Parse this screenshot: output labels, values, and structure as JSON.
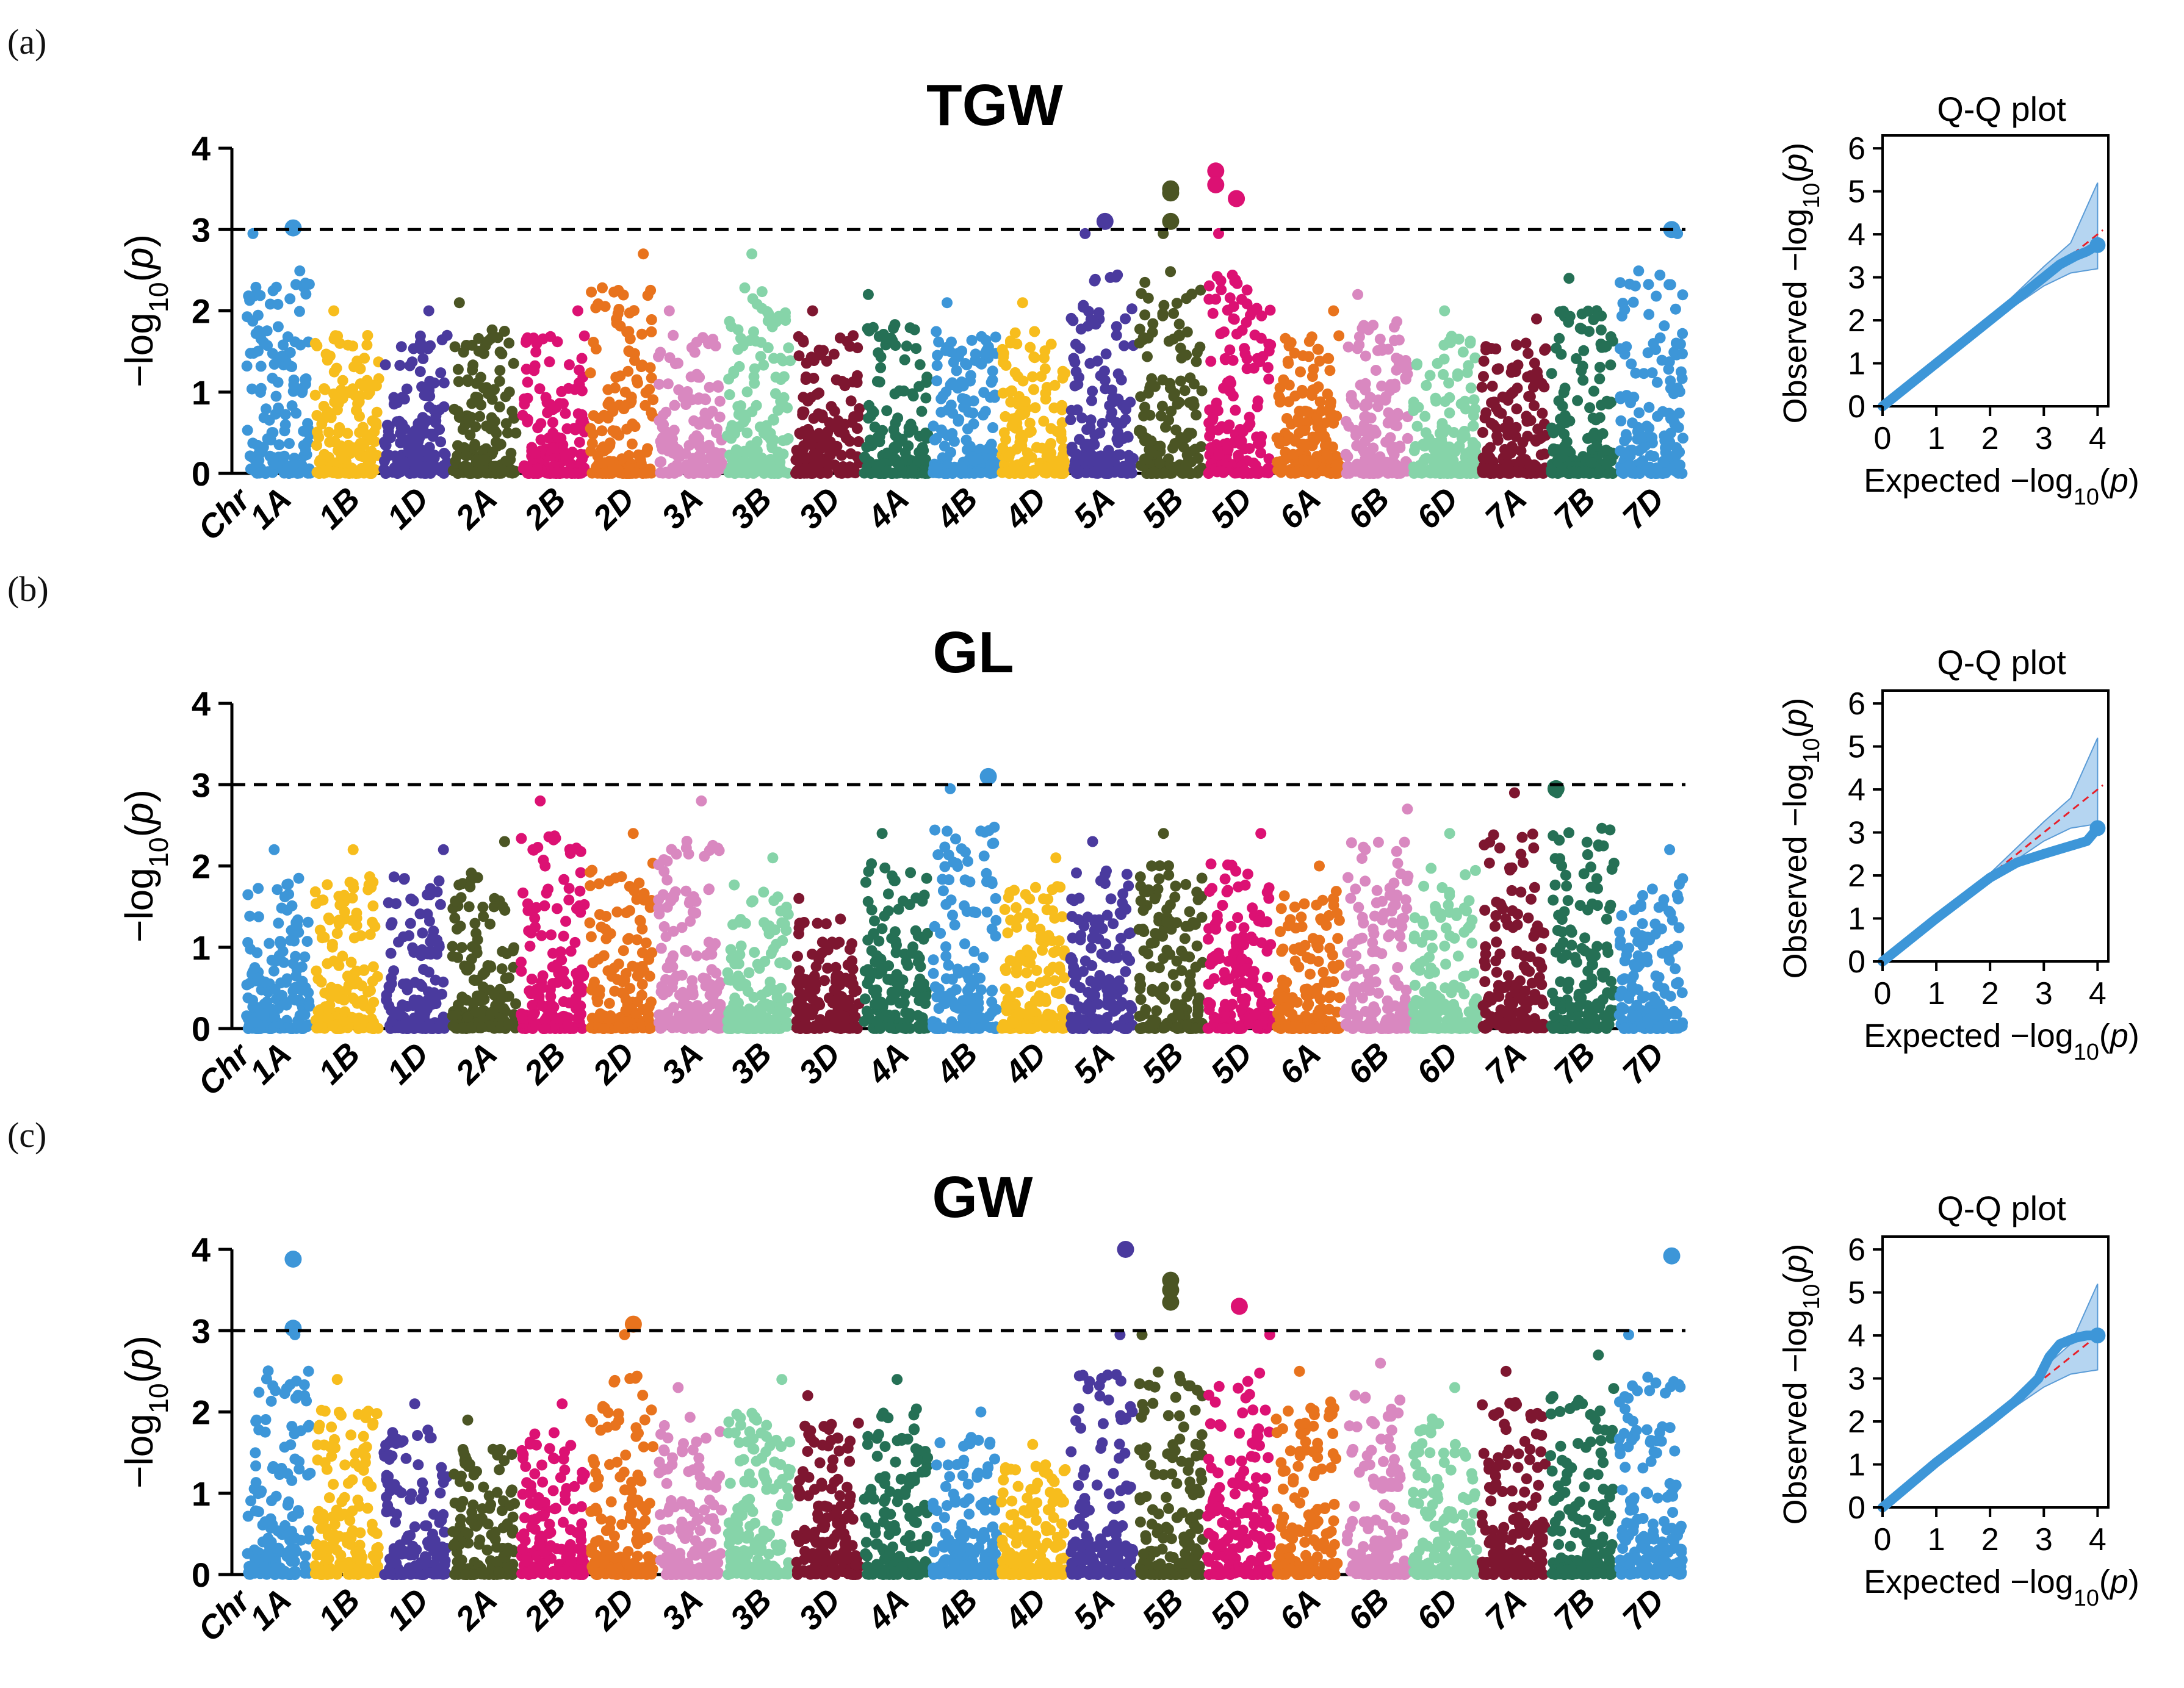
{
  "figure": {
    "panels": [
      {
        "letter": "(a)",
        "title": "TGW"
      },
      {
        "letter": "(b)",
        "title": "GL"
      },
      {
        "letter": "(c)",
        "title": "GW"
      }
    ],
    "manhattan_ylabel": "−log10(p)",
    "qq_title": "Q-Q plot",
    "qq_xlabel": "Expected −log10(p)",
    "qq_ylabel": "Observed −log10(p)",
    "chr_axis_label": "Chr"
  },
  "chart_data": [
    {
      "type": "scatter",
      "subtype": "manhattan",
      "panel": "(a)",
      "title": "TGW",
      "xlabel": "Chr",
      "ylabel": "−log10(p)",
      "ylim": [
        0,
        4
      ],
      "yticks": [
        0,
        1,
        2,
        3,
        4
      ],
      "threshold": 3,
      "categories": [
        "1A",
        "1B",
        "1D",
        "2A",
        "2B",
        "2D",
        "3A",
        "3B",
        "3D",
        "4A",
        "4B",
        "4D",
        "5A",
        "5B",
        "5D",
        "6A",
        "6B",
        "6D",
        "7A",
        "7B",
        "7D"
      ],
      "chrom_colors": [
        "#3d96d8",
        "#f7bd1d",
        "#4a3a9e",
        "#4b5524",
        "#dc1173",
        "#e8731d",
        "#d988c0",
        "#86d4a9",
        "#7e1630",
        "#257055",
        "#3d96d8",
        "#f7bd1d",
        "#4a3a9e",
        "#4b5524",
        "#dc1173",
        "#e8731d",
        "#d988c0",
        "#86d4a9",
        "#7e1630",
        "#257055",
        "#3d96d8"
      ],
      "max_value_by_chr": [
        3.0,
        2.0,
        2.0,
        2.1,
        2.0,
        2.7,
        2.0,
        2.7,
        2.0,
        2.2,
        2.1,
        2.1,
        3.1,
        3.5,
        3.7,
        2.0,
        2.2,
        2.0,
        1.9,
        2.4,
        3.0
      ],
      "significant_points": [
        {
          "chr": "1A",
          "position": 0.75,
          "value": 3.02
        },
        {
          "chr": "5A",
          "position": 0.55,
          "value": 3.1
        },
        {
          "chr": "5B",
          "position": 0.5,
          "value": 3.5
        },
        {
          "chr": "5B",
          "position": 0.5,
          "value": 3.45
        },
        {
          "chr": "5B",
          "position": 0.5,
          "value": 3.1
        },
        {
          "chr": "5D",
          "position": 0.1,
          "value": 3.72
        },
        {
          "chr": "5D",
          "position": 0.1,
          "value": 3.55
        },
        {
          "chr": "5D",
          "position": 0.45,
          "value": 3.38
        },
        {
          "chr": "7D",
          "position": 0.85,
          "value": 3.0
        }
      ]
    },
    {
      "type": "line",
      "subtype": "qq",
      "panel": "(a)",
      "title": "Q-Q plot",
      "xlabel": "Expected −log10(p)",
      "ylabel": "Observed −log10(p)",
      "xlim": [
        0,
        4.2
      ],
      "ylim": [
        0,
        6.3
      ],
      "xticks": [
        0,
        1,
        2,
        3,
        4
      ],
      "yticks": [
        0,
        1,
        2,
        3,
        4,
        5,
        6
      ],
      "observed_curve": {
        "x": [
          0,
          1,
          2,
          2.5,
          3,
          3.3,
          3.6,
          3.8,
          4.0
        ],
        "y": [
          0,
          1,
          2,
          2.5,
          3.0,
          3.3,
          3.5,
          3.6,
          3.75
        ]
      },
      "confidence_band": {
        "x": [
          0,
          1,
          2,
          3,
          3.5,
          4.0
        ],
        "lower": [
          0,
          1,
          1.95,
          2.8,
          3.1,
          3.2
        ],
        "upper": [
          0,
          1,
          2.05,
          3.25,
          3.8,
          5.2
        ]
      },
      "reference_line": {
        "x": [
          0,
          4.1
        ],
        "y": [
          0,
          4.1
        ]
      }
    },
    {
      "type": "scatter",
      "subtype": "manhattan",
      "panel": "(b)",
      "title": "GL",
      "xlabel": "Chr",
      "ylabel": "−log10(p)",
      "ylim": [
        0,
        4
      ],
      "yticks": [
        0,
        1,
        2,
        3,
        4
      ],
      "threshold": 3,
      "categories": [
        "1A",
        "1B",
        "1D",
        "2A",
        "2B",
        "2D",
        "3A",
        "3B",
        "3D",
        "4A",
        "4B",
        "4D",
        "5A",
        "5B",
        "5D",
        "6A",
        "6B",
        "6D",
        "7A",
        "7B",
        "7D"
      ],
      "chrom_colors": [
        "#3d96d8",
        "#f7bd1d",
        "#4a3a9e",
        "#4b5524",
        "#dc1173",
        "#e8731d",
        "#d988c0",
        "#86d4a9",
        "#7e1630",
        "#257055",
        "#3d96d8",
        "#f7bd1d",
        "#4a3a9e",
        "#4b5524",
        "#dc1173",
        "#e8731d",
        "#d988c0",
        "#86d4a9",
        "#7e1630",
        "#257055",
        "#3d96d8"
      ],
      "max_value_by_chr": [
        2.2,
        2.2,
        2.2,
        2.3,
        2.8,
        2.4,
        2.8,
        2.1,
        1.6,
        2.4,
        3.1,
        2.1,
        2.3,
        2.4,
        2.4,
        2.0,
        2.7,
        2.4,
        2.9,
        2.9,
        2.2
      ],
      "significant_points": [
        {
          "chr": "4B",
          "position": 0.9,
          "value": 3.1
        },
        {
          "chr": "7B",
          "position": 0.05,
          "value": 2.95
        }
      ]
    },
    {
      "type": "line",
      "subtype": "qq",
      "panel": "(b)",
      "title": "Q-Q plot",
      "xlabel": "Expected −log10(p)",
      "ylabel": "Observed −log10(p)",
      "xlim": [
        0,
        4.2
      ],
      "ylim": [
        0,
        6.3
      ],
      "xticks": [
        0,
        1,
        2,
        3,
        4
      ],
      "yticks": [
        0,
        1,
        2,
        3,
        4,
        5,
        6
      ],
      "observed_curve": {
        "x": [
          0,
          1,
          2,
          2.5,
          3,
          3.4,
          3.8,
          4.0
        ],
        "y": [
          0,
          1,
          1.95,
          2.3,
          2.5,
          2.65,
          2.8,
          3.1
        ]
      },
      "confidence_band": {
        "x": [
          0,
          1,
          2,
          3,
          3.5,
          4.0
        ],
        "lower": [
          0,
          1,
          1.95,
          2.8,
          3.1,
          3.2
        ],
        "upper": [
          0,
          1,
          2.05,
          3.25,
          3.8,
          5.2
        ]
      },
      "reference_line": {
        "x": [
          0,
          4.1
        ],
        "y": [
          0,
          4.1
        ]
      }
    },
    {
      "type": "scatter",
      "subtype": "manhattan",
      "panel": "(c)",
      "title": "GW",
      "xlabel": "Chr",
      "ylabel": "−log10(p)",
      "ylim": [
        0,
        4
      ],
      "yticks": [
        0,
        1,
        2,
        3,
        4
      ],
      "threshold": 3,
      "categories": [
        "1A",
        "1B",
        "1D",
        "2A",
        "2B",
        "2D",
        "3A",
        "3B",
        "3D",
        "4A",
        "4B",
        "4D",
        "5A",
        "5B",
        "5D",
        "6A",
        "6B",
        "6D",
        "7A",
        "7B",
        "7D"
      ],
      "chrom_colors": [
        "#3d96d8",
        "#f7bd1d",
        "#4a3a9e",
        "#4b5524",
        "#dc1173",
        "#e8731d",
        "#d988c0",
        "#86d4a9",
        "#7e1630",
        "#257055",
        "#3d96d8",
        "#f7bd1d",
        "#4a3a9e",
        "#4b5524",
        "#dc1173",
        "#e8731d",
        "#d988c0",
        "#86d4a9",
        "#7e1630",
        "#257055",
        "#3d96d8"
      ],
      "max_value_by_chr": [
        3.9,
        2.4,
        2.1,
        1.9,
        2.1,
        3.1,
        2.3,
        2.4,
        2.2,
        2.4,
        2.0,
        1.6,
        4.0,
        3.6,
        3.3,
        2.5,
        2.6,
        2.3,
        2.5,
        2.7,
        3.9
      ],
      "significant_points": [
        {
          "chr": "1A",
          "position": 0.75,
          "value": 3.88
        },
        {
          "chr": "1A",
          "position": 0.75,
          "value": 3.03
        },
        {
          "chr": "2D",
          "position": 0.7,
          "value": 3.08
        },
        {
          "chr": "5A",
          "position": 0.9,
          "value": 4.0
        },
        {
          "chr": "5B",
          "position": 0.5,
          "value": 3.62
        },
        {
          "chr": "5B",
          "position": 0.5,
          "value": 3.5
        },
        {
          "chr": "5B",
          "position": 0.5,
          "value": 3.35
        },
        {
          "chr": "5D",
          "position": 0.5,
          "value": 3.3
        },
        {
          "chr": "7D",
          "position": 0.85,
          "value": 3.92
        }
      ]
    },
    {
      "type": "line",
      "subtype": "qq",
      "panel": "(c)",
      "title": "Q-Q plot",
      "xlabel": "Expected −log10(p)",
      "ylabel": "Observed −log10(p)",
      "xlim": [
        0,
        4.2
      ],
      "ylim": [
        0,
        6.3
      ],
      "xticks": [
        0,
        1,
        2,
        3,
        4
      ],
      "yticks": [
        0,
        1,
        2,
        3,
        4,
        5,
        6
      ],
      "observed_curve": {
        "x": [
          0,
          1,
          2,
          2.5,
          2.9,
          3.1,
          3.3,
          3.6,
          3.8,
          4.0
        ],
        "y": [
          0,
          1.05,
          2,
          2.5,
          3.0,
          3.5,
          3.8,
          3.95,
          4.0,
          4.0
        ]
      },
      "confidence_band": {
        "x": [
          0,
          1,
          2,
          3,
          3.5,
          4.0
        ],
        "lower": [
          0,
          1,
          1.95,
          2.8,
          3.1,
          3.2
        ],
        "upper": [
          0,
          1,
          2.05,
          3.25,
          3.8,
          5.2
        ]
      },
      "reference_line": {
        "x": [
          0,
          4.1
        ],
        "y": [
          0,
          4.1
        ]
      }
    }
  ]
}
